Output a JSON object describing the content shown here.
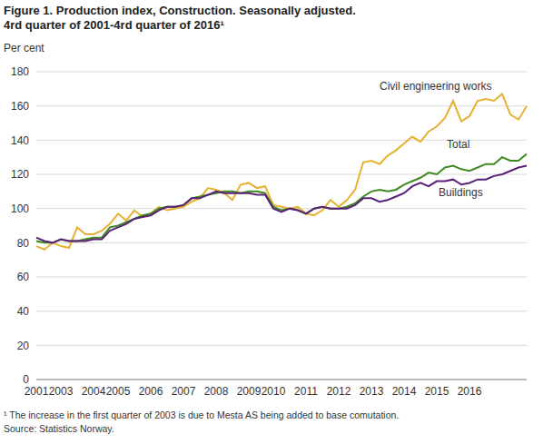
{
  "chart_data": {
    "type": "line",
    "title": "Figure 1. Production index, Construction. Seasonally adjusted.",
    "subtitle": "4rd quarter of 2001-4rd quarter of 2016¹",
    "y_label": "Per cent",
    "annotations": [
      "¹ The increase in the first quarter of 2003 is due to Mesta AS being added to base comutation.",
      "Source: Statistics Norway."
    ],
    "categories": [
      "2001",
      null,
      null,
      "2003",
      null,
      null,
      null,
      "2004",
      null,
      null,
      "2005",
      null,
      null,
      null,
      "2006",
      null,
      null,
      null,
      "2007",
      null,
      null,
      null,
      "2008",
      null,
      null,
      null,
      "2009",
      null,
      null,
      "2010",
      null,
      null,
      null,
      "2011",
      null,
      null,
      null,
      "2012",
      null,
      null,
      null,
      "2013",
      null,
      null,
      null,
      "2014",
      null,
      null,
      null,
      "2015",
      null,
      null,
      null,
      "2016",
      null,
      null,
      null,
      null,
      null,
      null,
      null
    ],
    "series": [
      {
        "name": "Civil engineering works",
        "color": "#e8b030",
        "values": [
          78,
          76,
          80,
          78,
          77,
          89,
          85,
          85,
          87,
          91,
          97,
          93,
          99,
          95,
          97,
          101,
          99,
          100,
          101,
          104,
          106,
          112,
          111,
          109,
          105,
          114,
          115,
          112,
          113,
          102,
          101,
          100,
          101,
          97,
          96,
          99,
          105,
          101,
          105,
          111,
          127,
          128,
          126,
          131,
          134,
          138,
          142,
          139,
          145,
          148,
          153,
          163,
          151,
          154,
          163,
          164,
          163,
          167,
          155,
          152,
          160
        ]
      },
      {
        "name": "Total",
        "color": "#3d8a1e",
        "values": [
          81,
          80,
          80,
          82,
          81,
          81,
          82,
          83,
          83,
          89,
          90,
          92,
          94,
          96,
          97,
          100,
          101,
          101,
          102,
          106,
          107,
          108,
          109,
          110,
          110,
          109,
          110,
          110,
          109,
          101,
          99,
          100,
          99,
          97,
          100,
          101,
          100,
          100,
          101,
          103,
          107,
          110,
          111,
          110,
          111,
          114,
          116,
          118,
          121,
          120,
          124,
          125,
          123,
          122,
          124,
          126,
          126,
          130,
          128,
          128,
          132
        ]
      },
      {
        "name": "Buildings",
        "color": "#5b2177",
        "values": [
          83,
          81,
          80,
          82,
          81,
          81,
          81,
          82,
          82,
          87,
          89,
          91,
          94,
          95,
          96,
          99,
          101,
          101,
          102,
          106,
          106,
          108,
          110,
          109,
          109,
          109,
          109,
          108,
          108,
          100,
          98,
          100,
          99,
          97,
          100,
          101,
          100,
          100,
          100,
          102,
          106,
          106,
          104,
          105,
          107,
          109,
          113,
          115,
          113,
          116,
          116,
          117,
          114,
          115,
          117,
          117,
          119,
          120,
          122,
          124,
          125
        ]
      }
    ],
    "ylim": [
      0,
      180
    ],
    "yticks": [
      0,
      20,
      40,
      60,
      80,
      100,
      120,
      140,
      160,
      180
    ],
    "grid": true
  }
}
